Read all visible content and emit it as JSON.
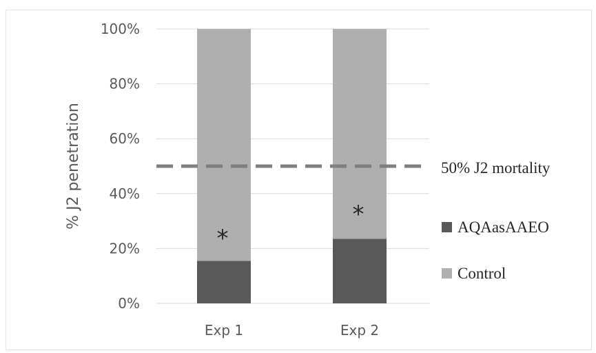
{
  "chart_data": {
    "type": "bar",
    "stacked": true,
    "categories": [
      "Exp 1",
      "Exp 2"
    ],
    "series": [
      {
        "name": "AQAasAAEO",
        "values": [
          15.5,
          23.5
        ],
        "color": "#595959"
      },
      {
        "name": "Control",
        "values": [
          84.5,
          76.5
        ],
        "color": "#afafaf"
      }
    ],
    "ylabel": "% J2 penetration",
    "ylim": [
      0,
      100
    ],
    "yticks": [
      "0%",
      "20%",
      "40%",
      "60%",
      "80%",
      "100%"
    ],
    "reference_line": {
      "value": 50,
      "label": "50% J2 mortality",
      "style": "dashed",
      "color": "#7f7f7f"
    },
    "annotations": [
      {
        "category": "Exp 1",
        "text": "*"
      },
      {
        "category": "Exp 2",
        "text": "*"
      }
    ],
    "grid": "horizontal",
    "legend": "right"
  }
}
